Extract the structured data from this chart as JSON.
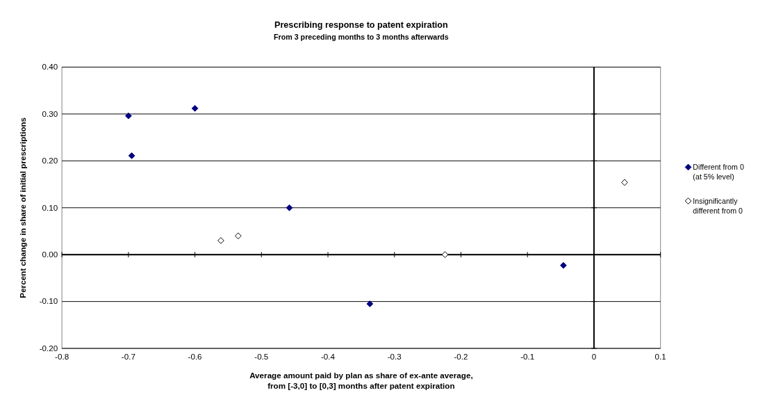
{
  "chart_data": {
    "type": "scatter",
    "title": "Prescribing response to patent expiration",
    "subtitle": "From 3 preceding months to 3 months afterwards",
    "xlabel": "Average amount paid by plan as share of ex-ante average,\nfrom [-3,0] to [0,3] months after patent expiration",
    "ylabel": "Percent change in share of initial prescriptions",
    "xlim": [
      -0.8,
      0.1
    ],
    "xticks": [
      -0.8,
      -0.7,
      -0.6,
      -0.5,
      -0.4,
      -0.3,
      -0.2,
      -0.1,
      0,
      0.1
    ],
    "ylim": [
      -0.2,
      0.4
    ],
    "yticks": [
      {
        "value": -0.2,
        "label": "-0.20"
      },
      {
        "value": -0.1,
        "label": "-0.10"
      },
      {
        "value": 0,
        "label": "0.00"
      },
      {
        "value": 0.1,
        "label": "0.10"
      },
      {
        "value": 0.2,
        "label": "0.20"
      },
      {
        "value": 0.3,
        "label": "0.30"
      },
      {
        "value": 0.4,
        "label": "0.40"
      }
    ],
    "grid": "y",
    "legend": "right",
    "marker": "diamond",
    "ref_lines": [
      {
        "axis": "x",
        "value": 0,
        "label": null,
        "color": "#000000"
      }
    ],
    "series": [
      {
        "name": "Different from 0 (at 5% level)",
        "color": "#000080",
        "x": [
          -0.7,
          -0.6,
          -0.695,
          -0.458,
          -0.337,
          -0.046
        ],
        "values": [
          0.296,
          0.312,
          0.211,
          0.1,
          -0.105,
          -0.023
        ]
      },
      {
        "name": "Insignificantly different from 0",
        "color": "#ffffff",
        "x": [
          -0.561,
          -0.535,
          -0.224,
          0.046
        ],
        "values": [
          0.03,
          0.04,
          0,
          0.154
        ]
      }
    ]
  }
}
